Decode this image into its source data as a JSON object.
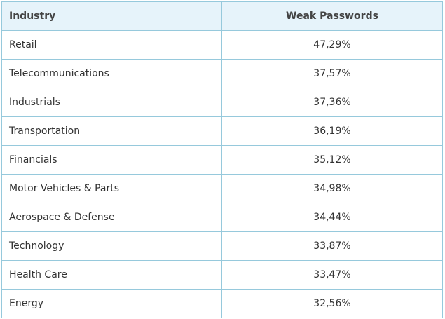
{
  "table": {
    "header": [
      "Industry",
      "Weak Passwords"
    ],
    "rows": [
      [
        "Retail",
        "47,29%"
      ],
      [
        "Telecommunications",
        "37,57%"
      ],
      [
        "Industrials",
        "37,36%"
      ],
      [
        "Transportation",
        "36,19%"
      ],
      [
        "Financials",
        "35,12%"
      ],
      [
        "Motor Vehicles & Parts",
        "34,98%"
      ],
      [
        "Aerospace & Defense",
        "34,44%"
      ],
      [
        "Technology",
        "33,87%"
      ],
      [
        "Health Care",
        "33,47%"
      ],
      [
        "Energy",
        "32,56%"
      ]
    ]
  }
}
